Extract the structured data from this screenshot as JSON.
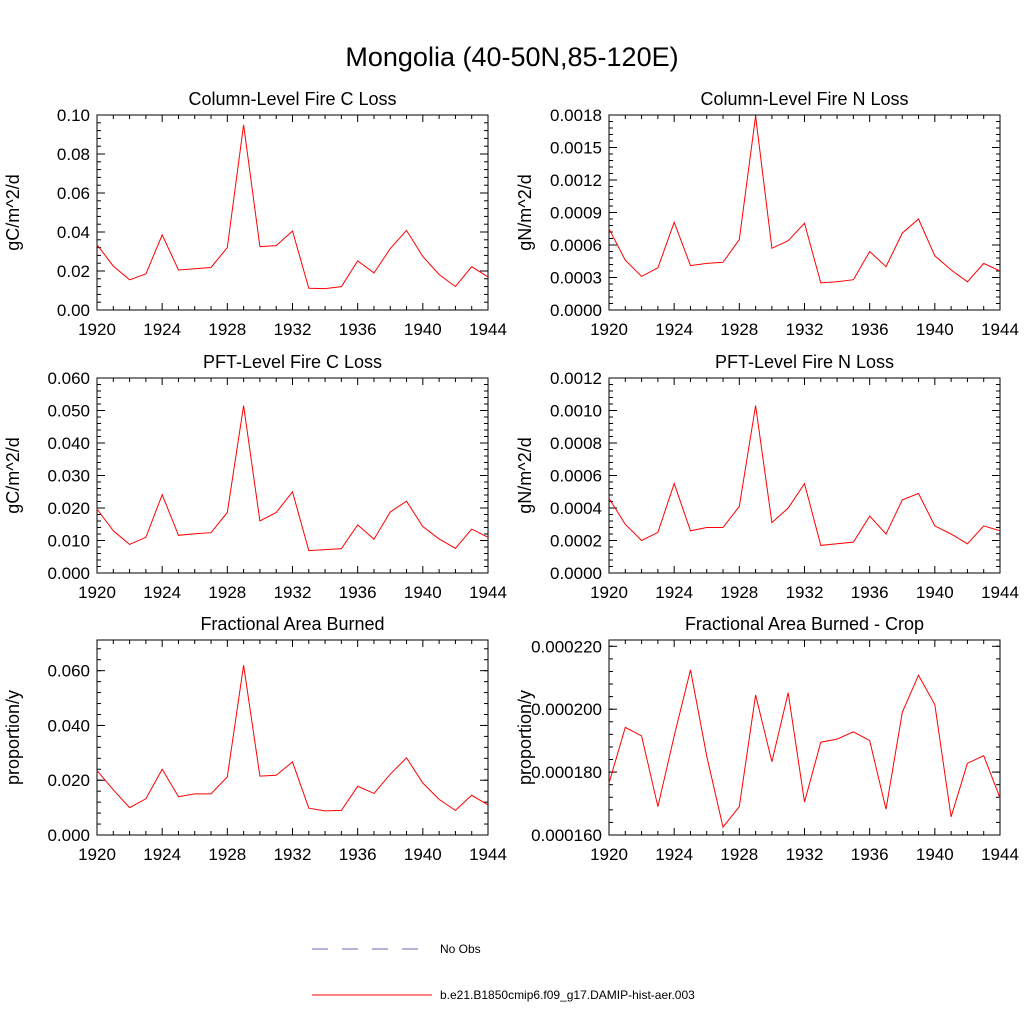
{
  "figure": {
    "title": "Mongolia (40-50N,85-120E)"
  },
  "legend": {
    "items": [
      {
        "label": "No Obs",
        "color": "#6a6ab4",
        "style": "dashed"
      },
      {
        "label": "b.e21.B1850cmip6.f09_g17.DAMIP-hist-aer.003",
        "color": "#ff0000",
        "style": "solid"
      }
    ]
  },
  "chart_data": [
    {
      "type": "line",
      "title": "Column-Level Fire C Loss",
      "ylabel": "gC/m^2/d",
      "xlim": [
        1920,
        1944
      ],
      "ylim": [
        0,
        0.1
      ],
      "x_ticks": [
        1920,
        1924,
        1928,
        1932,
        1936,
        1940,
        1944
      ],
      "y_ticks": [
        "0.00",
        "0.02",
        "0.04",
        "0.06",
        "0.08",
        "0.10"
      ],
      "y_tick_values": [
        0,
        0.02,
        0.04,
        0.06,
        0.08,
        0.1
      ],
      "x": [
        1920,
        1921,
        1922,
        1923,
        1924,
        1925,
        1926,
        1927,
        1928,
        1929,
        1930,
        1931,
        1932,
        1933,
        1934,
        1935,
        1936,
        1937,
        1938,
        1939,
        1940,
        1941,
        1942,
        1943,
        1944
      ],
      "series": [
        {
          "name": "b.e21.B1850cmip6.f09_g17.DAMIP-hist-aer.003",
          "color": "#ff0000",
          "values": [
            0.0335,
            0.0225,
            0.0155,
            0.0185,
            0.0385,
            0.0205,
            0.0212,
            0.0218,
            0.032,
            0.095,
            0.0325,
            0.033,
            0.0405,
            0.0112,
            0.011,
            0.012,
            0.0252,
            0.019,
            0.0315,
            0.0408,
            0.0275,
            0.0182,
            0.012,
            0.0222,
            0.017
          ]
        }
      ]
    },
    {
      "type": "line",
      "title": "Column-Level Fire N Loss",
      "ylabel": "gN/m^2/d",
      "xlim": [
        1920,
        1944
      ],
      "ylim": [
        0,
        0.0018
      ],
      "x_ticks": [
        1920,
        1924,
        1928,
        1932,
        1936,
        1940,
        1944
      ],
      "y_ticks": [
        "0.0000",
        "0.0003",
        "0.0006",
        "0.0009",
        "0.0012",
        "0.0015",
        "0.0018"
      ],
      "y_tick_values": [
        0,
        0.0003,
        0.0006,
        0.0009,
        0.0012,
        0.0015,
        0.0018
      ],
      "x": [
        1920,
        1921,
        1922,
        1923,
        1924,
        1925,
        1926,
        1927,
        1928,
        1929,
        1930,
        1931,
        1932,
        1933,
        1934,
        1935,
        1936,
        1937,
        1938,
        1939,
        1940,
        1941,
        1942,
        1943,
        1944
      ],
      "series": [
        {
          "name": "b.e21.B1850cmip6.f09_g17.DAMIP-hist-aer.003",
          "color": "#ff0000",
          "values": [
            0.00075,
            0.00046,
            0.00031,
            0.00039,
            0.00081,
            0.00041,
            0.00043,
            0.00044,
            0.00065,
            0.00179,
            0.00057,
            0.00064,
            0.0008,
            0.00025,
            0.00026,
            0.00028,
            0.00054,
            0.0004,
            0.00071,
            0.00084,
            0.0005,
            0.00037,
            0.00026,
            0.00043,
            0.00036
          ]
        }
      ]
    },
    {
      "type": "line",
      "title": "PFT-Level Fire C Loss",
      "ylabel": "gC/m^2/d",
      "xlim": [
        1920,
        1944
      ],
      "ylim": [
        0,
        0.06
      ],
      "x_ticks": [
        1920,
        1924,
        1928,
        1932,
        1936,
        1940,
        1944
      ],
      "y_ticks": [
        "0.000",
        "0.010",
        "0.020",
        "0.030",
        "0.040",
        "0.050",
        "0.060"
      ],
      "y_tick_values": [
        0,
        0.01,
        0.02,
        0.03,
        0.04,
        0.05,
        0.06
      ],
      "x": [
        1920,
        1921,
        1922,
        1923,
        1924,
        1925,
        1926,
        1927,
        1928,
        1929,
        1930,
        1931,
        1932,
        1933,
        1934,
        1935,
        1936,
        1937,
        1938,
        1939,
        1940,
        1941,
        1942,
        1943,
        1944
      ],
      "series": [
        {
          "name": "b.e21.B1850cmip6.f09_g17.DAMIP-hist-aer.003",
          "color": "#ff0000",
          "values": [
            0.0197,
            0.013,
            0.0088,
            0.011,
            0.0241,
            0.0116,
            0.0121,
            0.0124,
            0.0186,
            0.0515,
            0.016,
            0.0186,
            0.025,
            0.0069,
            0.0072,
            0.0075,
            0.0148,
            0.0104,
            0.0188,
            0.0221,
            0.0143,
            0.0105,
            0.0076,
            0.0135,
            0.011
          ]
        }
      ]
    },
    {
      "type": "line",
      "title": "PFT-Level Fire N Loss",
      "ylabel": "gN/m^2/d",
      "xlim": [
        1920,
        1944
      ],
      "ylim": [
        0,
        0.0012
      ],
      "x_ticks": [
        1920,
        1924,
        1928,
        1932,
        1936,
        1940,
        1944
      ],
      "y_ticks": [
        "0.0000",
        "0.0002",
        "0.0004",
        "0.0006",
        "0.0008",
        "0.0010",
        "0.0012"
      ],
      "y_tick_values": [
        0,
        0.0002,
        0.0004,
        0.0006,
        0.0008,
        0.001,
        0.0012
      ],
      "x": [
        1920,
        1921,
        1922,
        1923,
        1924,
        1925,
        1926,
        1927,
        1928,
        1929,
        1930,
        1931,
        1932,
        1933,
        1934,
        1935,
        1936,
        1937,
        1938,
        1939,
        1940,
        1941,
        1942,
        1943,
        1944
      ],
      "series": [
        {
          "name": "b.e21.B1850cmip6.f09_g17.DAMIP-hist-aer.003",
          "color": "#ff0000",
          "values": [
            0.00046,
            0.0003,
            0.0002,
            0.00025,
            0.00055,
            0.00026,
            0.00028,
            0.00028,
            0.00041,
            0.00103,
            0.00031,
            0.0004,
            0.00055,
            0.00017,
            0.00018,
            0.00019,
            0.00035,
            0.00024,
            0.00045,
            0.00049,
            0.00029,
            0.00024,
            0.00018,
            0.00029,
            0.00026
          ]
        }
      ]
    },
    {
      "type": "line",
      "title": "Fractional Area Burned",
      "ylabel": "proportion/y",
      "xlim": [
        1920,
        1944
      ],
      "ylim": [
        0,
        0.0712
      ],
      "x_ticks": [
        1920,
        1924,
        1928,
        1932,
        1936,
        1940,
        1944
      ],
      "y_ticks": [
        "0.000",
        "0.020",
        "0.040",
        "0.060"
      ],
      "y_tick_values": [
        0,
        0.02,
        0.04,
        0.06
      ],
      "x": [
        1920,
        1921,
        1922,
        1923,
        1924,
        1925,
        1926,
        1927,
        1928,
        1929,
        1930,
        1931,
        1932,
        1933,
        1934,
        1935,
        1936,
        1937,
        1938,
        1939,
        1940,
        1941,
        1942,
        1943,
        1944
      ],
      "series": [
        {
          "name": "b.e21.B1850cmip6.f09_g17.DAMIP-hist-aer.003",
          "color": "#ff0000",
          "values": [
            0.0235,
            0.0165,
            0.01,
            0.0132,
            0.024,
            0.014,
            0.015,
            0.015,
            0.0212,
            0.062,
            0.0215,
            0.0218,
            0.0267,
            0.0098,
            0.0088,
            0.009,
            0.0178,
            0.0152,
            0.0222,
            0.0282,
            0.019,
            0.013,
            0.009,
            0.0145,
            0.011
          ]
        }
      ]
    },
    {
      "type": "line",
      "title": "Fractional Area Burned - Crop",
      "ylabel": "proportion/y",
      "xlim": [
        1920,
        1944
      ],
      "ylim": [
        0.00016,
        0.000222
      ],
      "x_ticks": [
        1920,
        1924,
        1928,
        1932,
        1936,
        1940,
        1944
      ],
      "y_ticks": [
        "0.000160",
        "0.000180",
        "0.000200",
        "0.000220"
      ],
      "y_tick_values": [
        0.00016,
        0.00018,
        0.0002,
        0.00022
      ],
      "x": [
        1920,
        1921,
        1922,
        1923,
        1924,
        1925,
        1926,
        1927,
        1928,
        1929,
        1930,
        1931,
        1932,
        1933,
        1934,
        1935,
        1936,
        1937,
        1938,
        1939,
        1940,
        1941,
        1942,
        1943,
        1944
      ],
      "series": [
        {
          "name": "b.e21.B1850cmip6.f09_g17.DAMIP-hist-aer.003",
          "color": "#ff0000",
          "values": [
            0.0001765,
            0.0001942,
            0.0001915,
            0.000169,
            0.0001915,
            0.0002125,
            0.000185,
            0.0001625,
            0.000169,
            0.0002045,
            0.0001833,
            0.0002052,
            0.0001705,
            0.0001895,
            0.0001905,
            0.0001928,
            0.00019,
            0.0001682,
            0.000199,
            0.0002108,
            0.0002015,
            0.0001658,
            0.0001828,
            0.0001852,
            0.0001718
          ]
        }
      ]
    }
  ]
}
